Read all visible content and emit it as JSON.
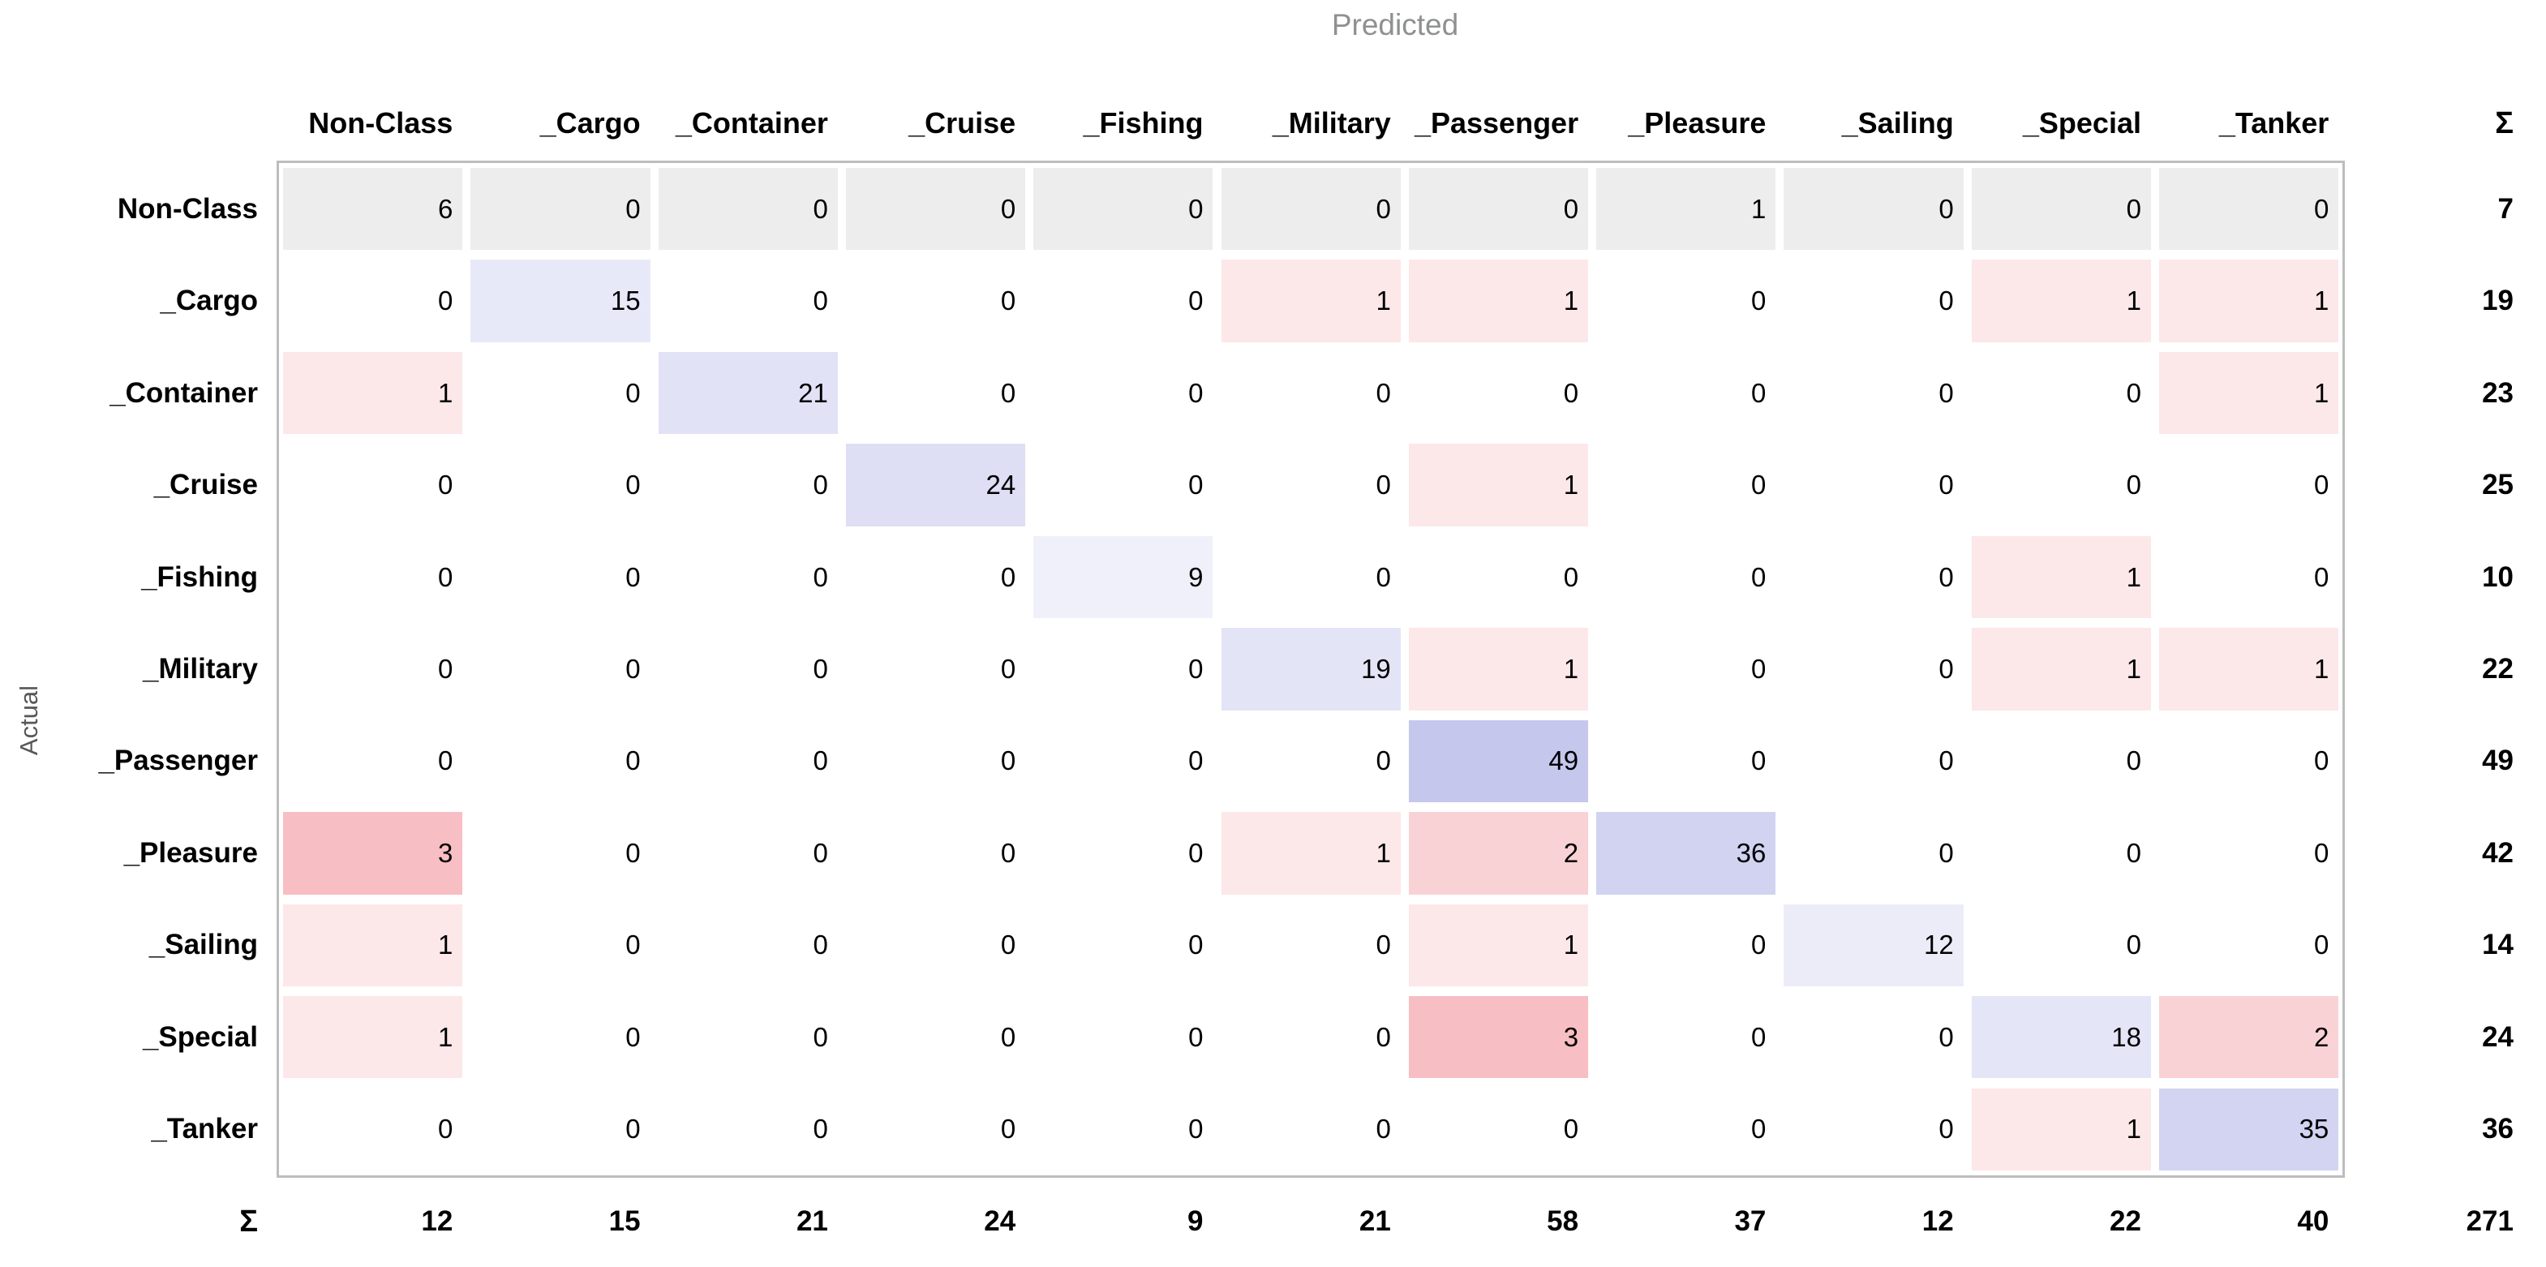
{
  "chart_data": {
    "type": "heatmap",
    "subtype": "confusion-matrix",
    "xlabel": "Predicted",
    "ylabel": "Actual",
    "sum_symbol": "Σ",
    "categories": [
      "Non-Class",
      "_Cargo",
      "_Container",
      "_Cruise",
      "_Fishing",
      "_Military",
      "_Passenger",
      "_Pleasure",
      "_Sailing",
      "_Special",
      "_Tanker"
    ],
    "matrix": [
      [
        6,
        0,
        0,
        0,
        0,
        0,
        0,
        1,
        0,
        0,
        0
      ],
      [
        0,
        15,
        0,
        0,
        0,
        1,
        1,
        0,
        0,
        1,
        1
      ],
      [
        1,
        0,
        21,
        0,
        0,
        0,
        0,
        0,
        0,
        0,
        1
      ],
      [
        0,
        0,
        0,
        24,
        0,
        0,
        1,
        0,
        0,
        0,
        0
      ],
      [
        0,
        0,
        0,
        0,
        9,
        0,
        0,
        0,
        0,
        1,
        0
      ],
      [
        0,
        0,
        0,
        0,
        0,
        19,
        1,
        0,
        0,
        1,
        1
      ],
      [
        0,
        0,
        0,
        0,
        0,
        0,
        49,
        0,
        0,
        0,
        0
      ],
      [
        3,
        0,
        0,
        0,
        0,
        1,
        2,
        36,
        0,
        0,
        0
      ],
      [
        1,
        0,
        0,
        0,
        0,
        0,
        1,
        0,
        12,
        0,
        0
      ],
      [
        1,
        0,
        0,
        0,
        0,
        0,
        3,
        0,
        0,
        18,
        2
      ],
      [
        0,
        0,
        0,
        0,
        0,
        0,
        0,
        0,
        0,
        1,
        35
      ]
    ],
    "row_sums": [
      7,
      19,
      23,
      25,
      10,
      22,
      49,
      42,
      14,
      24,
      36
    ],
    "col_sums": [
      12,
      15,
      21,
      24,
      9,
      21,
      58,
      37,
      12,
      22,
      40
    ],
    "total": 271,
    "legend_position": "none",
    "grid": false
  },
  "colors": {
    "background": "#ffffff",
    "text": "#000000",
    "predicted_label": "#8f9092",
    "actual_label": "#57575a",
    "grid_border": "#bdbdbd",
    "nonclass_row_bg": "#ededed",
    "zero_cell_bg": "#ffffff",
    "heat_diag_base": "#c5c7ed",
    "heat_offdiag_base": "#f7bec3"
  },
  "heat_scale": {
    "diag_gamma": 0.78,
    "offdiag_gamma": 0.9
  }
}
